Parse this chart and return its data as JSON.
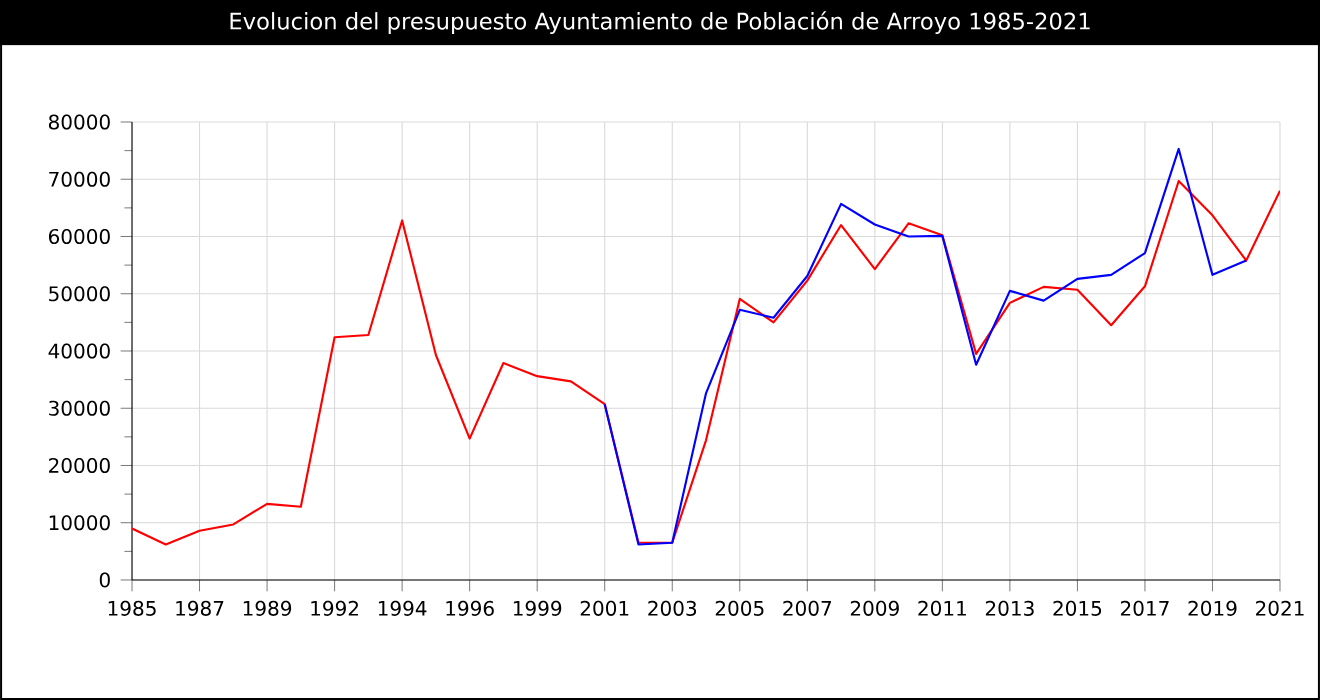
{
  "chart_data": {
    "type": "line",
    "title": "Evolucion del presupuesto Ayuntamiento de Población de Arroyo 1985-2021",
    "categories": [
      "1985",
      null,
      "1987",
      null,
      "1989",
      null,
      "1992",
      null,
      "1994",
      null,
      "1996",
      null,
      "1999",
      null,
      "2001",
      null,
      "2003",
      null,
      "2005",
      null,
      "2007",
      null,
      "2009",
      null,
      "2011",
      null,
      "2013",
      null,
      "2015",
      null,
      "2017",
      null,
      "2019",
      null,
      "2021"
    ],
    "series": [
      {
        "color": "#ff0000",
        "values": [
          9000,
          6200,
          8600,
          9700,
          13300,
          12800,
          42400,
          42800,
          62800,
          39300,
          24700,
          37900,
          35600,
          34700,
          30700,
          6500,
          6500,
          24400,
          49100,
          45000,
          52300,
          62000,
          54300,
          62300,
          60200,
          39500,
          48400,
          51200,
          50700,
          44500,
          51300,
          69700,
          63700,
          55800,
          68000
        ]
      },
      {
        "color": "#0000ff",
        "values": [
          null,
          null,
          null,
          null,
          null,
          null,
          null,
          null,
          null,
          null,
          null,
          null,
          null,
          null,
          30700,
          6200,
          6500,
          32600,
          47200,
          45800,
          53100,
          65700,
          62100,
          60000,
          60100,
          37600,
          50500,
          48800,
          52600,
          53300,
          57100,
          75300,
          53300,
          55800,
          null
        ]
      }
    ],
    "ylim": [
      0,
      80000
    ],
    "yticks": [
      0,
      10000,
      20000,
      30000,
      40000,
      50000,
      60000,
      70000,
      80000
    ],
    "grid": true
  }
}
